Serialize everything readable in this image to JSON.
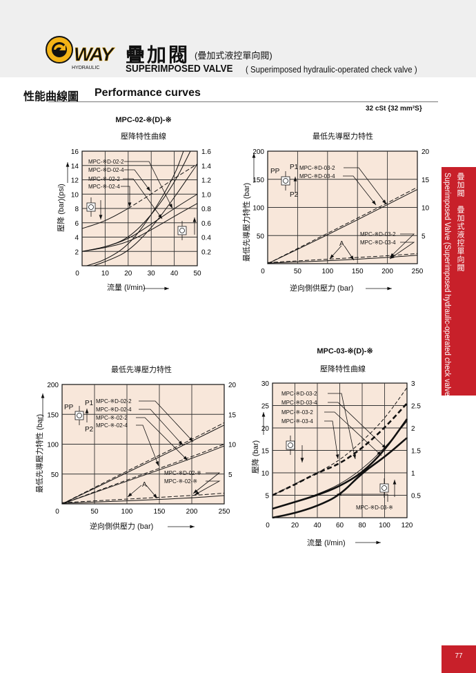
{
  "header": {
    "brand": "WAY",
    "brand_sub": "HYDRAULIC",
    "title_cn": "疊加閥",
    "subtitle_cn": "(疊加式液控單向閥)",
    "title_en": "SUPERIMPOSED VALVE",
    "subtitle_en": "( Superimposed hydraulic-operated check valve )"
  },
  "section": {
    "title_cn": "性能曲線圖",
    "title_en": "Performance curves",
    "viscosity": "32 cSt {32 mm²S}"
  },
  "side_tab": {
    "cn": "疊加閥　疊加式液控單向閥",
    "en": "Superimposed Valve (Superimposed hydraulic-operated check valve)",
    "color": "#c8202a"
  },
  "page_number": "77",
  "chart_data": [
    {
      "type": "line",
      "model": "MPC-02-※(D)-※",
      "title": "壓降特性曲線",
      "xlabel": "流量 (l/min)",
      "ylabel": "壓降 (bar)(psi)",
      "xlim": [
        0,
        50
      ],
      "ylim": [
        0,
        16
      ],
      "xticks": [
        0,
        10,
        20,
        30,
        40,
        50
      ],
      "yticks": [
        2,
        4,
        6,
        8,
        10,
        12,
        14,
        16
      ],
      "right_ticks": [
        {
          "at": 2,
          "label": "0.2"
        },
        {
          "at": 4,
          "label": "0.4"
        },
        {
          "at": 6,
          "label": "0.6"
        },
        {
          "at": 8,
          "label": "0.8"
        },
        {
          "at": 10,
          "label": "1.0"
        },
        {
          "at": 12,
          "label": "1.2"
        },
        {
          "at": 14,
          "label": "1.4"
        },
        {
          "at": 16,
          "label": "1.6"
        }
      ],
      "legend": [
        "MPC-※D-02-2",
        "MPC-※D-02-4",
        "MPC-※-02-2",
        "MPC-※-02-4"
      ],
      "series": [
        {
          "name": "MPC-※-02-4 (reverse)",
          "style": "solid",
          "points": [
            [
              0,
              5.2
            ],
            [
              8,
              6
            ],
            [
              14,
              6.9
            ],
            [
              20,
              8
            ]
          ]
        },
        {
          "name": "MPC-※-02-4 (reverse, extrapolated)",
          "style": "dashed",
          "points": [
            [
              20,
              8
            ],
            [
              30,
              10
            ],
            [
              40,
              12.2
            ],
            [
              50,
              14.2
            ]
          ]
        },
        {
          "name": "MPC-※D-02-2",
          "style": "solid",
          "points": [
            [
              0,
              2
            ],
            [
              10,
              2.6
            ],
            [
              20,
              3.8
            ],
            [
              30,
              7
            ],
            [
              40,
              11.5
            ],
            [
              47,
              16
            ]
          ]
        },
        {
          "name": "MPC-※D-02-4",
          "style": "solid",
          "points": [
            [
              0,
              2
            ],
            [
              10,
              2.6
            ],
            [
              20,
              3.7
            ],
            [
              30,
              5.8
            ],
            [
              40,
              8
            ],
            [
              50,
              10
            ]
          ]
        },
        {
          "name": "MPC-※-02-2",
          "style": "solid",
          "points": [
            [
              0,
              2
            ],
            [
              10,
              2.5
            ],
            [
              20,
              3.3
            ],
            [
              30,
              5
            ],
            [
              40,
              6.9
            ],
            [
              50,
              8.7
            ]
          ]
        },
        {
          "name": "MPC-※-02 (forward)",
          "style": "solid",
          "points": [
            [
              5,
              0
            ],
            [
              12,
              0.8
            ],
            [
              20,
              2
            ],
            [
              30,
              5.2
            ],
            [
              40,
              9.5
            ],
            [
              50,
              14.2
            ]
          ]
        },
        {
          "name": "MPC-※D-02 (forward)",
          "style": "solid",
          "points": [
            [
              2,
              0
            ],
            [
              10,
              0.8
            ],
            [
              20,
              2.8
            ],
            [
              30,
              7
            ],
            [
              40,
              12.5
            ],
            [
              44,
              16
            ]
          ]
        }
      ]
    },
    {
      "type": "line",
      "title": "最低先導壓力特性",
      "xlabel": "逆向側供壓力 (bar)",
      "ylabel": "最低先導壓力特性 (bar)",
      "xlim": [
        0,
        250
      ],
      "ylim": [
        0,
        200
      ],
      "xticks": [
        0,
        50,
        100,
        150,
        200,
        250
      ],
      "yticks": [
        50,
        100,
        150,
        200
      ],
      "right_ticks": [
        {
          "at": 50,
          "label": "5"
        },
        {
          "at": 100,
          "label": "10"
        },
        {
          "at": 150,
          "label": "15"
        },
        {
          "at": 200,
          "label": "20"
        }
      ],
      "legend": [
        "MPC-※D-03-2",
        "MPC-※D-03-4"
      ],
      "legend_lower": [
        "MPC-※D-03-2",
        "MPC-※D-03-4"
      ],
      "ports": {
        "pp": "PP",
        "p1": "P1",
        "p2": "P2",
        "a": "A"
      },
      "series": [
        {
          "name": "MPC-※D-03-2",
          "style": "dashed",
          "points": [
            [
              0,
              0
            ],
            [
              100,
              54
            ],
            [
              200,
              108
            ],
            [
              250,
              136
            ]
          ]
        },
        {
          "name": "MPC-※D-03-4",
          "style": "solid",
          "points": [
            [
              0,
              0
            ],
            [
              100,
              51
            ],
            [
              200,
              105
            ],
            [
              250,
              132
            ]
          ]
        },
        {
          "name": "MPC-※D-03-2 A",
          "style": "dashed",
          "points": [
            [
              0,
              2
            ],
            [
              100,
              8
            ],
            [
              200,
              14
            ],
            [
              250,
              18
            ]
          ]
        },
        {
          "name": "MPC-※D-03-4 A",
          "style": "solid",
          "points": [
            [
              0,
              1
            ],
            [
              100,
              5
            ],
            [
              200,
              11
            ],
            [
              250,
              15
            ]
          ]
        }
      ]
    },
    {
      "type": "line",
      "title": "最低先導壓力特性",
      "xlabel": "逆向側供壓力 (bar)",
      "ylabel": "最低先導壓力特性 (bar)",
      "xlim": [
        0,
        250
      ],
      "ylim": [
        0,
        200
      ],
      "xticks": [
        0,
        50,
        100,
        150,
        200,
        250
      ],
      "yticks": [
        50,
        100,
        150,
        200
      ],
      "right_ticks": [
        {
          "at": 50,
          "label": "5"
        },
        {
          "at": 100,
          "label": "10"
        },
        {
          "at": 150,
          "label": "15"
        },
        {
          "at": 200,
          "label": "20"
        }
      ],
      "legend": [
        "MPC-※D-02-2",
        "MPC-※D-02-4",
        "MPC-※-02-2",
        "MPC-※-02-4"
      ],
      "legend_lower": [
        "MPC-※D-02-※",
        "MPC-※-02-※"
      ],
      "ports": {
        "pp": "PP",
        "p1": "P1",
        "p2": "P2",
        "a": "A"
      },
      "series": [
        {
          "name": "MPC-※D-02-2",
          "style": "dashed",
          "points": [
            [
              0,
              0
            ],
            [
              100,
              55
            ],
            [
              200,
              108
            ],
            [
              250,
              136
            ]
          ]
        },
        {
          "name": "MPC-※D-02-4",
          "style": "solid",
          "points": [
            [
              0,
              0
            ],
            [
              100,
              52
            ],
            [
              200,
              105
            ],
            [
              250,
              132
            ]
          ]
        },
        {
          "name": "MPC-※-02-2",
          "style": "dashed",
          "points": [
            [
              0,
              0
            ],
            [
              100,
              40
            ],
            [
              200,
              79
            ],
            [
              250,
              100
            ]
          ]
        },
        {
          "name": "MPC-※-02-4",
          "style": "solid",
          "points": [
            [
              0,
              0
            ],
            [
              100,
              38
            ],
            [
              200,
              76
            ],
            [
              250,
              97
            ]
          ]
        },
        {
          "name": "MPC-※D-02-※ A",
          "style": "dashed",
          "points": [
            [
              0,
              2
            ],
            [
              100,
              8
            ],
            [
              200,
              14
            ],
            [
              250,
              18
            ]
          ]
        },
        {
          "name": "MPC-※-02-※ A",
          "style": "solid",
          "points": [
            [
              0,
              1
            ],
            [
              100,
              5
            ],
            [
              200,
              10
            ],
            [
              250,
              14
            ]
          ]
        }
      ]
    },
    {
      "type": "line",
      "model": "MPC-03-※(D)-※",
      "title": "壓降特性曲線",
      "xlabel": "流量 (l/min)",
      "ylabel": "壓降 (bar)",
      "xlim": [
        0,
        120
      ],
      "ylim": [
        0,
        30
      ],
      "xticks": [
        0,
        20,
        40,
        60,
        80,
        100,
        120
      ],
      "yticks": [
        5,
        10,
        15,
        20,
        25,
        30
      ],
      "right_ticks": [
        {
          "at": 5,
          "label": "0.5"
        },
        {
          "at": 10,
          "label": "1"
        },
        {
          "at": 15,
          "label": "1.5"
        },
        {
          "at": 20,
          "label": "2"
        },
        {
          "at": 25,
          "label": "2.5"
        },
        {
          "at": 30,
          "label": "3"
        }
      ],
      "legend": [
        "MPC-※D-03-2",
        "MPC-※D-03-4",
        "MPC-※-03-2",
        "MPC-※-03-4"
      ],
      "legend_lower": [
        "MPC-※D-03-※"
      ],
      "series": [
        {
          "name": "MPC-※D-03-2",
          "style": "dashed-thin",
          "points": [
            [
              0,
              5
            ],
            [
              20,
              7.5
            ],
            [
              40,
              10
            ],
            [
              60,
              12.8
            ],
            [
              80,
              17
            ],
            [
              100,
              22
            ],
            [
              120,
              29
            ]
          ]
        },
        {
          "name": "MPC-※-03-2",
          "style": "dashed-thick",
          "points": [
            [
              0,
              5
            ],
            [
              20,
              7.4
            ],
            [
              40,
              10
            ],
            [
              60,
              12
            ],
            [
              80,
              15.5
            ],
            [
              100,
              20
            ],
            [
              120,
              25.5
            ]
          ]
        },
        {
          "name": "MPC-※-03-4",
          "style": "thick",
          "points": [
            [
              0,
              2
            ],
            [
              20,
              3.5
            ],
            [
              40,
              5
            ],
            [
              60,
              7
            ],
            [
              80,
              10
            ],
            [
              100,
              15
            ],
            [
              120,
              22
            ]
          ]
        },
        {
          "name": "MPC-※D-03-4",
          "style": "thin",
          "points": [
            [
              0,
              2
            ],
            [
              20,
              3.6
            ],
            [
              40,
              5.2
            ],
            [
              60,
              7.4
            ],
            [
              80,
              10.8
            ],
            [
              100,
              15.5
            ],
            [
              120,
              21.5
            ]
          ]
        },
        {
          "name": "MPC-※D-03-※",
          "style": "thick",
          "points": [
            [
              0,
              0
            ],
            [
              20,
              1
            ],
            [
              40,
              2.6
            ],
            [
              60,
              5
            ],
            [
              80,
              10
            ],
            [
              100,
              13.5
            ],
            [
              120,
              17.8
            ]
          ]
        }
      ]
    }
  ]
}
